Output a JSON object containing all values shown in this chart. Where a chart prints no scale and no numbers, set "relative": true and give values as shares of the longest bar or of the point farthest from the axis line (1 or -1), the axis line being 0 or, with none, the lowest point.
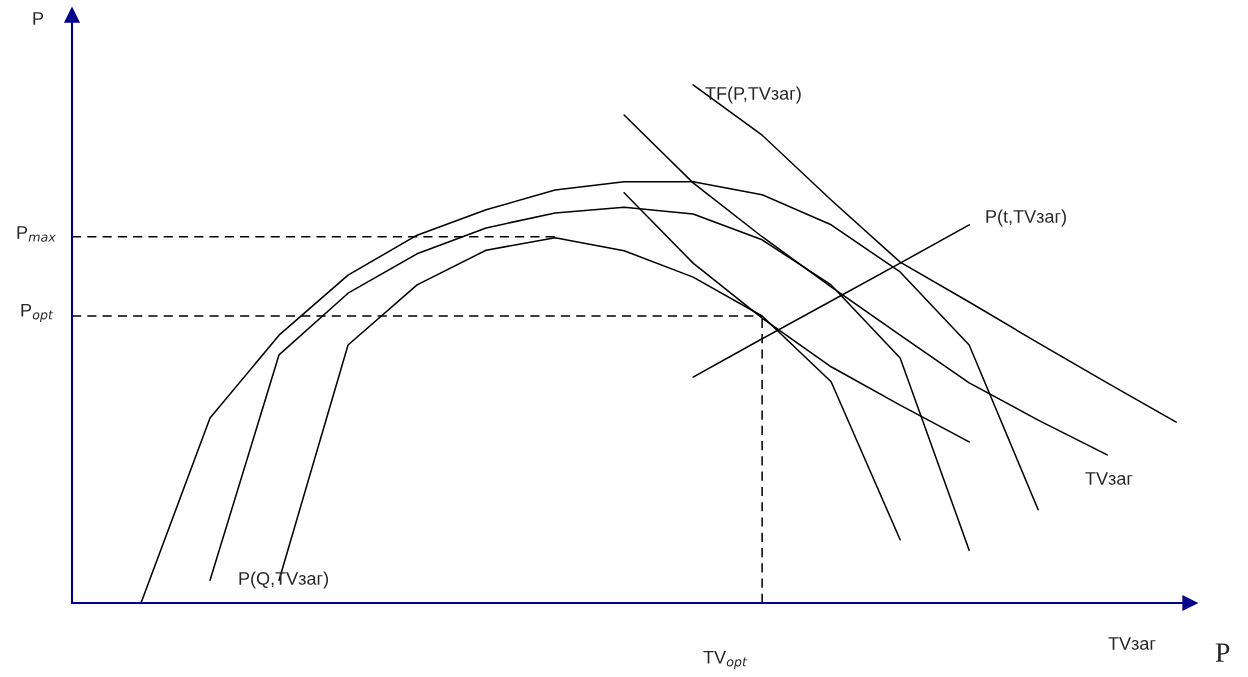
{
  "chart_data": {
    "type": "line",
    "relative": true,
    "marker": "none",
    "xlabel": "TVзаг",
    "ylabel": "P",
    "categories": [
      null,
      null,
      null,
      null,
      null,
      null,
      null,
      null,
      null,
      null,
      null,
      null,
      null,
      null,
      null,
      null,
      null
    ],
    "series": [
      {
        "color": "#000000",
        "line_style": "solid",
        "values": [
          null,
          0,
          0.357,
          0.517,
          0.633,
          0.71,
          0.759,
          0.797,
          0.813,
          0.813,
          0.788,
          0.73,
          0.639,
          0.498,
          0.18,
          null,
          null
        ]
      },
      {
        "color": "#000000",
        "line_style": "solid",
        "values": [
          null,
          null,
          0.044,
          0.479,
          0.598,
          0.674,
          0.724,
          0.753,
          0.764,
          0.751,
          0.701,
          0.614,
          0.473,
          0.102,
          null,
          null,
          null
        ]
      },
      {
        "color": "#000000",
        "line_style": "solid",
        "values": [
          null,
          null,
          null,
          0.044,
          0.498,
          0.614,
          0.681,
          0.705,
          0.68,
          0.629,
          0.554,
          0.427,
          0.122,
          null,
          null,
          null,
          null
        ]
      },
      {
        "color": "#000000",
        "line_style": "solid",
        "values": [
          null,
          null,
          null,
          null,
          null,
          null,
          null,
          null,
          0.792,
          0.656,
          0.55,
          0.456,
          0.382,
          0.311,
          null,
          null,
          null
        ]
      },
      {
        "color": "#000000",
        "line_style": "solid",
        "values": [
          null,
          null,
          null,
          null,
          null,
          null,
          null,
          null,
          0.942,
          0.811,
          0.707,
          0.61,
          0.517,
          0.425,
          0.353,
          0.286,
          null
        ]
      },
      {
        "color": "#000000",
        "line_style": "solid",
        "values": [
          null,
          null,
          null,
          null,
          null,
          null,
          null,
          null,
          null,
          1.0,
          0.903,
          0.778,
          0.658,
          0.581,
          0.502,
          0.425,
          0.349
        ]
      },
      {
        "color": "#000000",
        "line_style": "solid",
        "values": [
          null,
          null,
          null,
          null,
          null,
          null,
          null,
          null,
          null,
          0.436,
          0.51,
          0.583,
          0.656,
          0.73,
          null,
          null,
          null
        ]
      },
      {
        "color": "#000000",
        "line_style": "dashed",
        "values": [
          0.707,
          0.707,
          0.707,
          0.707,
          0.707,
          0.707,
          0.707,
          0.707,
          null,
          null,
          null,
          null,
          null,
          null,
          null,
          null,
          null
        ]
      },
      {
        "color": "#000000",
        "line_style": "dashed",
        "values": [
          0.554,
          0.554,
          0.554,
          0.554,
          0.554,
          0.554,
          0.554,
          0.554,
          0.554,
          0.554,
          0.554,
          null,
          null,
          null,
          null,
          null,
          null
        ]
      }
    ],
    "annotations": [
      "P$_{max}$",
      "P$_{opt}$",
      "TV$_{opt}$",
      "TF(P,TVзаг)",
      "P(t,TVзаг)",
      "TVзаг",
      "P(Q,TVзаг)",
      "P"
    ]
  }
}
